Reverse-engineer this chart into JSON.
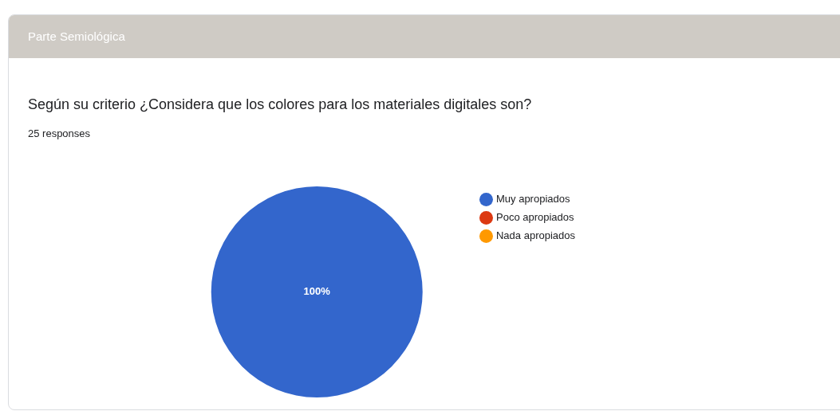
{
  "chart_data": {
    "type": "pie",
    "title": "Según su criterio ¿Considera que los colores para los materiales digitales son?",
    "subtitle": "25 responses",
    "annotations": [
      "Parte Semiológica"
    ],
    "categories": [
      "Muy apropiados",
      "Poco apropiados",
      "Nada apropiados"
    ],
    "values": [
      100,
      0,
      0
    ],
    "colors": [
      "#3366cc",
      "#dc3912",
      "#ff9900"
    ],
    "value_labels": [
      "100%",
      null,
      null
    ],
    "legend": "right"
  }
}
